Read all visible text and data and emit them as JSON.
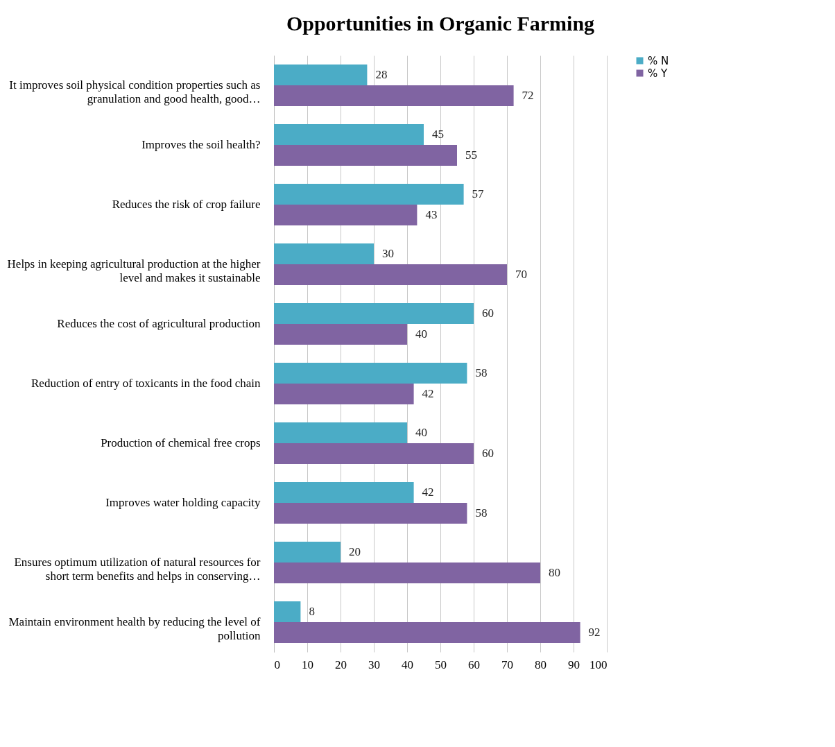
{
  "chart_data": {
    "type": "bar",
    "orientation": "horizontal",
    "title": "Opportunities in Organic Farming",
    "categories": [
      "It improves soil physical condition properties such as granulation and good health, good…",
      "Improves the soil health?",
      "Reduces the risk of crop failure",
      "Helps in keeping agricultural production at the higher level and makes it sustainable",
      "Reduces the cost of agricultural production",
      "Reduction of entry of toxicants in the food chain",
      "Production of chemical free crops",
      "Improves water holding capacity",
      "Ensures optimum utilization of natural resources for short term benefits and helps in conserving…",
      "Maintain environment health by reducing the level of pollution"
    ],
    "series": [
      {
        "name": "% N",
        "color": "#4bacc6",
        "values": [
          28,
          45,
          57,
          30,
          60,
          58,
          40,
          42,
          20,
          8
        ]
      },
      {
        "name": "% Y",
        "color": "#8064a2",
        "values": [
          72,
          55,
          43,
          70,
          40,
          42,
          60,
          58,
          80,
          92
        ]
      }
    ],
    "xlim": [
      0,
      100
    ],
    "xticks": [
      0,
      10,
      20,
      30,
      40,
      50,
      60,
      70,
      80,
      90,
      100
    ],
    "grid": "x",
    "legend": "right",
    "data_labels": true
  }
}
